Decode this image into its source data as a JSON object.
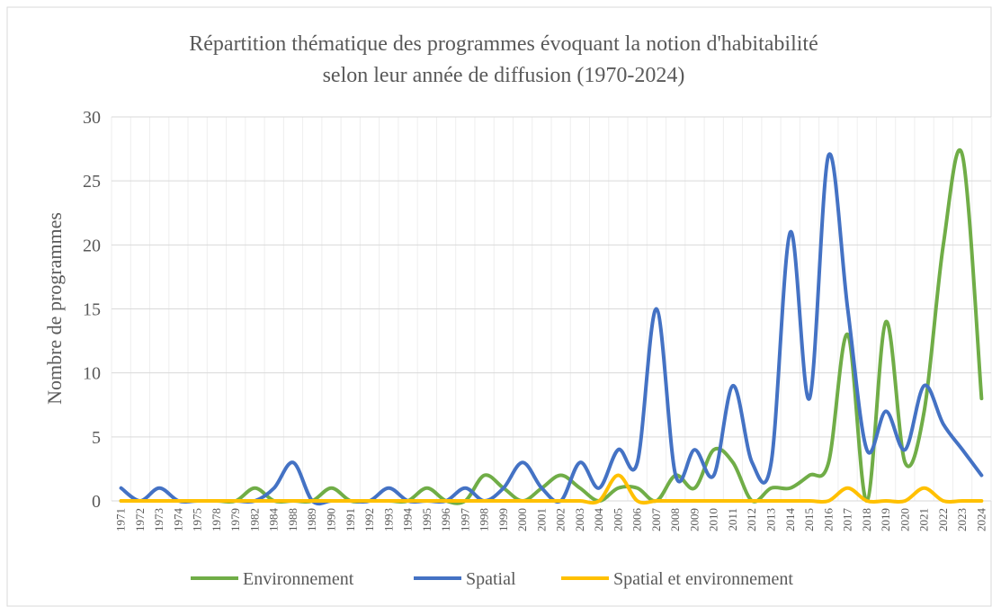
{
  "chart_data": {
    "type": "line",
    "title": [
      "Répartition thématique des programmes évoquant la notion d'habitabilité",
      "selon leur année de diffusion (1970-2024)"
    ],
    "y_label": "Nombre de programmes",
    "categories": [
      "1971",
      "1972",
      "1973",
      "1974",
      "1975",
      "1978",
      "1979",
      "1982",
      "1984",
      "1988",
      "1989",
      "1990",
      "1991",
      "1992",
      "1993",
      "1994",
      "1995",
      "1996",
      "1997",
      "1998",
      "1999",
      "2000",
      "2001",
      "2002",
      "2003",
      "2004",
      "2005",
      "2006",
      "2007",
      "2008",
      "2009",
      "2010",
      "2011",
      "2012",
      "2013",
      "2014",
      "2015",
      "2016",
      "2017",
      "2018",
      "2019",
      "2020",
      "2021",
      "2022",
      "2023",
      "2024"
    ],
    "series": [
      {
        "name": "Environnement",
        "color": "#70ad47",
        "values": [
          0,
          0,
          0,
          0,
          0,
          0,
          0,
          1,
          0,
          0,
          0,
          1,
          0,
          0,
          0,
          0,
          1,
          0,
          0,
          2,
          1,
          0,
          1,
          2,
          1,
          0,
          1,
          1,
          0,
          2,
          1,
          4,
          3,
          0,
          1,
          1,
          2,
          3,
          13,
          0,
          14,
          3,
          7,
          20,
          27,
          8
        ]
      },
      {
        "name": "Spatial",
        "color": "#4472c4",
        "values": [
          1,
          0,
          1,
          0,
          0,
          0,
          0,
          0,
          1,
          3,
          0,
          0,
          0,
          0,
          1,
          0,
          0,
          0,
          1,
          0,
          1,
          3,
          1,
          0,
          3,
          1,
          4,
          3,
          15,
          2,
          4,
          2,
          9,
          3,
          3,
          21,
          8,
          27,
          15,
          4,
          7,
          4,
          9,
          6,
          4,
          2
        ]
      },
      {
        "name": "Spatial et environnement",
        "color": "#ffc000",
        "values": [
          0,
          0,
          0,
          0,
          0,
          0,
          0,
          0,
          0,
          0,
          0,
          0,
          0,
          0,
          0,
          0,
          0,
          0,
          0,
          0,
          0,
          0,
          0,
          0,
          0,
          0,
          2,
          0,
          0,
          0,
          0,
          0,
          0,
          0,
          0,
          0,
          0,
          0,
          1,
          0,
          0,
          0,
          1,
          0,
          0,
          0
        ]
      }
    ],
    "ylim": [
      0,
      30
    ],
    "yticks": [
      0,
      5,
      10,
      15,
      20,
      25,
      30
    ],
    "grid": true,
    "smooth": true,
    "legend": "bottom"
  }
}
